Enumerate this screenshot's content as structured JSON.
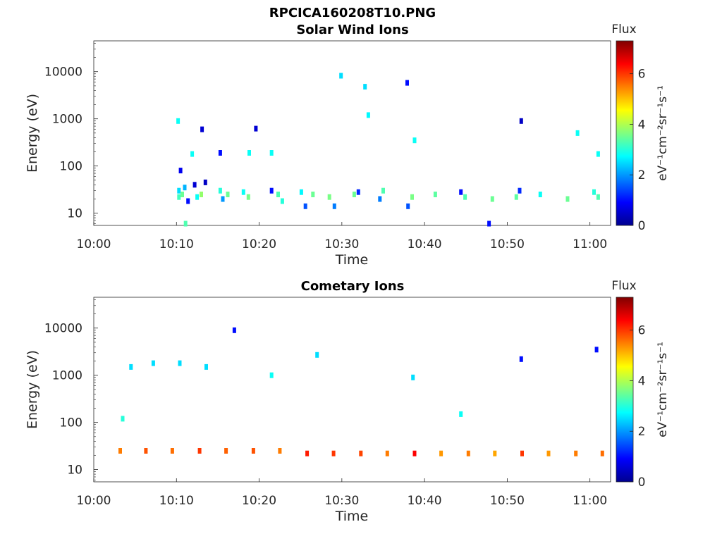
{
  "figure": {
    "title": "RPCICA160208T10.PNG"
  },
  "chart_data": [
    {
      "type": "heatmap",
      "title": "Solar Wind Ions",
      "xlabel": "Time",
      "ylabel": "Energy (eV)",
      "x_ticks": [
        "10:00",
        "10:10",
        "10:20",
        "10:30",
        "10:40",
        "10:50",
        "11:00"
      ],
      "y_ticks": [
        "10",
        "100",
        "1000",
        "10000"
      ],
      "y_scale": "log",
      "colorbar": {
        "title": "Flux",
        "unit": "eV⁻¹cm⁻²sr⁻¹s⁻¹",
        "ticks": [
          "0",
          "2",
          "4",
          "6"
        ],
        "range": [
          0,
          7.3
        ]
      },
      "points": [
        {
          "t": 10.3,
          "e": 30,
          "v": 2.5
        },
        {
          "t": 10.3,
          "e": 22,
          "v": 3.2
        },
        {
          "t": 10.5,
          "e": 80,
          "v": 0.8
        },
        {
          "t": 10.7,
          "e": 25,
          "v": 3.5
        },
        {
          "t": 11.0,
          "e": 35,
          "v": 2.2
        },
        {
          "t": 11.1,
          "e": 6,
          "v": 3.3
        },
        {
          "t": 11.4,
          "e": 18,
          "v": 1.0
        },
        {
          "t": 12.2,
          "e": 40,
          "v": 0.6
        },
        {
          "t": 12.5,
          "e": 22,
          "v": 2.8
        },
        {
          "t": 13.0,
          "e": 25,
          "v": 3.8
        },
        {
          "t": 13.5,
          "e": 45,
          "v": 0.5
        },
        {
          "t": 15.3,
          "e": 30,
          "v": 3.0
        },
        {
          "t": 15.6,
          "e": 20,
          "v": 2.0
        },
        {
          "t": 16.2,
          "e": 25,
          "v": 3.5
        },
        {
          "t": 18.1,
          "e": 28,
          "v": 2.8
        },
        {
          "t": 18.7,
          "e": 22,
          "v": 3.6
        },
        {
          "t": 21.5,
          "e": 30,
          "v": 1.0
        },
        {
          "t": 22.3,
          "e": 25,
          "v": 3.3
        },
        {
          "t": 22.8,
          "e": 18,
          "v": 3.0
        },
        {
          "t": 25.1,
          "e": 28,
          "v": 2.7
        },
        {
          "t": 25.6,
          "e": 14,
          "v": 1.5
        },
        {
          "t": 26.5,
          "e": 25,
          "v": 3.5
        },
        {
          "t": 28.5,
          "e": 22,
          "v": 3.6
        },
        {
          "t": 29.1,
          "e": 14,
          "v": 1.8
        },
        {
          "t": 31.5,
          "e": 25,
          "v": 3.5
        },
        {
          "t": 32.0,
          "e": 28,
          "v": 1.2
        },
        {
          "t": 34.6,
          "e": 20,
          "v": 1.8
        },
        {
          "t": 35.0,
          "e": 30,
          "v": 3.3
        },
        {
          "t": 38.0,
          "e": 14,
          "v": 1.5
        },
        {
          "t": 38.5,
          "e": 22,
          "v": 3.6
        },
        {
          "t": 41.3,
          "e": 25,
          "v": 3.4
        },
        {
          "t": 44.4,
          "e": 28,
          "v": 1.0
        },
        {
          "t": 44.9,
          "e": 22,
          "v": 3.3
        },
        {
          "t": 47.8,
          "e": 6,
          "v": 1.0
        },
        {
          "t": 48.2,
          "e": 20,
          "v": 3.5
        },
        {
          "t": 51.1,
          "e": 22,
          "v": 3.4
        },
        {
          "t": 51.5,
          "e": 30,
          "v": 1.2
        },
        {
          "t": 54.0,
          "e": 25,
          "v": 2.8
        },
        {
          "t": 57.3,
          "e": 20,
          "v": 3.5
        },
        {
          "t": 60.5,
          "e": 28,
          "v": 3.0
        },
        {
          "t": 61.0,
          "e": 22,
          "v": 3.3
        },
        {
          "t": 10.2,
          "e": 900,
          "v": 2.8
        },
        {
          "t": 11.9,
          "e": 180,
          "v": 2.8
        },
        {
          "t": 13.1,
          "e": 600,
          "v": 0.6
        },
        {
          "t": 15.3,
          "e": 190,
          "v": 1.0
        },
        {
          "t": 18.8,
          "e": 190,
          "v": 2.8
        },
        {
          "t": 19.6,
          "e": 620,
          "v": 0.6
        },
        {
          "t": 21.5,
          "e": 190,
          "v": 2.8
        },
        {
          "t": 29.9,
          "e": 8200,
          "v": 2.5
        },
        {
          "t": 32.8,
          "e": 4800,
          "v": 2.5
        },
        {
          "t": 33.2,
          "e": 1200,
          "v": 2.7
        },
        {
          "t": 37.9,
          "e": 5800,
          "v": 1.0
        },
        {
          "t": 38.8,
          "e": 350,
          "v": 2.8
        },
        {
          "t": 51.7,
          "e": 900,
          "v": 0.5
        },
        {
          "t": 58.5,
          "e": 500,
          "v": 2.8
        },
        {
          "t": 61.0,
          "e": 180,
          "v": 2.8
        }
      ]
    },
    {
      "type": "heatmap",
      "title": "Cometary Ions",
      "xlabel": "Time",
      "ylabel": "Energy (eV)",
      "x_ticks": [
        "10:00",
        "10:10",
        "10:20",
        "10:30",
        "10:40",
        "10:50",
        "11:00"
      ],
      "y_ticks": [
        "10",
        "100",
        "1000",
        "10000"
      ],
      "y_scale": "log",
      "colorbar": {
        "title": "Flux",
        "unit": "eV⁻¹cm⁻²sr⁻¹s⁻¹",
        "ticks": [
          "0",
          "2",
          "4",
          "6"
        ],
        "range": [
          0,
          7.3
        ]
      },
      "points": [
        {
          "t": 3.2,
          "e": 25,
          "v": 5.5
        },
        {
          "t": 6.3,
          "e": 25,
          "v": 5.8
        },
        {
          "t": 9.5,
          "e": 25,
          "v": 5.6
        },
        {
          "t": 12.8,
          "e": 25,
          "v": 6.0
        },
        {
          "t": 16.0,
          "e": 25,
          "v": 5.7
        },
        {
          "t": 19.3,
          "e": 25,
          "v": 5.8
        },
        {
          "t": 22.5,
          "e": 25,
          "v": 5.5
        },
        {
          "t": 25.8,
          "e": 22,
          "v": 6.2
        },
        {
          "t": 29.0,
          "e": 22,
          "v": 6.0
        },
        {
          "t": 32.3,
          "e": 22,
          "v": 5.9
        },
        {
          "t": 35.5,
          "e": 22,
          "v": 5.5
        },
        {
          "t": 38.8,
          "e": 22,
          "v": 6.4
        },
        {
          "t": 42.0,
          "e": 22,
          "v": 5.3
        },
        {
          "t": 45.3,
          "e": 22,
          "v": 5.5
        },
        {
          "t": 48.5,
          "e": 22,
          "v": 5.2
        },
        {
          "t": 51.8,
          "e": 22,
          "v": 6.0
        },
        {
          "t": 55.0,
          "e": 22,
          "v": 5.3
        },
        {
          "t": 58.3,
          "e": 22,
          "v": 5.5
        },
        {
          "t": 61.5,
          "e": 22,
          "v": 5.6
        },
        {
          "t": 3.5,
          "e": 120,
          "v": 3.0
        },
        {
          "t": 4.5,
          "e": 1500,
          "v": 2.5
        },
        {
          "t": 7.2,
          "e": 1800,
          "v": 2.5
        },
        {
          "t": 10.4,
          "e": 1800,
          "v": 2.5
        },
        {
          "t": 13.6,
          "e": 1500,
          "v": 2.5
        },
        {
          "t": 17.0,
          "e": 9000,
          "v": 1.0
        },
        {
          "t": 21.5,
          "e": 1000,
          "v": 2.8
        },
        {
          "t": 27.0,
          "e": 2700,
          "v": 2.5
        },
        {
          "t": 38.6,
          "e": 900,
          "v": 2.5
        },
        {
          "t": 44.4,
          "e": 150,
          "v": 2.8
        },
        {
          "t": 51.7,
          "e": 2200,
          "v": 1.0
        },
        {
          "t": 60.8,
          "e": 3500,
          "v": 1.0
        }
      ]
    }
  ]
}
